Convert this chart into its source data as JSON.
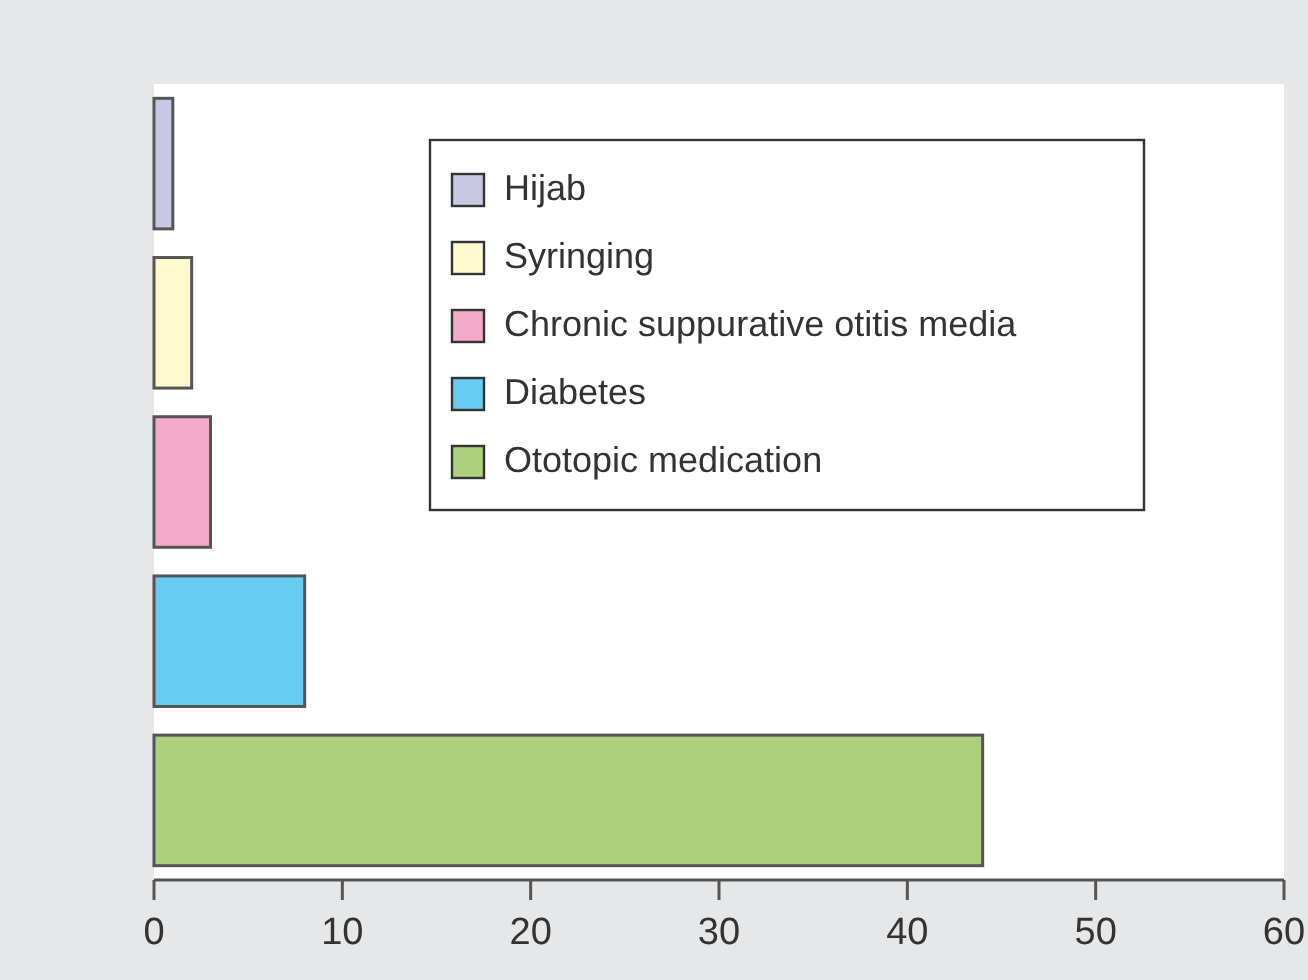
{
  "chart_data": {
    "type": "bar",
    "orientation": "horizontal",
    "stacked": true,
    "categories": [
      null,
      null,
      null,
      null,
      null
    ],
    "series": [
      {
        "name": "Hijab",
        "color": "#c8c8e4",
        "values": [
          1,
          null,
          null,
          null,
          null
        ]
      },
      {
        "name": "Syringing",
        "color": "#fffacd",
        "values": [
          null,
          2,
          null,
          null,
          null
        ]
      },
      {
        "name": "Chronic suppurative otitis media",
        "color": "#f4aacb",
        "values": [
          null,
          null,
          3,
          null,
          null
        ]
      },
      {
        "name": "Diabetes",
        "color": "#66ccf2",
        "values": [
          null,
          null,
          null,
          8,
          null
        ]
      },
      {
        "name": "Ototopic medication",
        "color": "#add07f",
        "values": [
          null,
          null,
          null,
          null,
          44
        ]
      }
    ],
    "xlim": [
      0,
      60
    ],
    "xticks": [
      0,
      10,
      20,
      30,
      40,
      50,
      60
    ],
    "legend": "top right",
    "tick_labels": "x",
    "grid": false
  }
}
